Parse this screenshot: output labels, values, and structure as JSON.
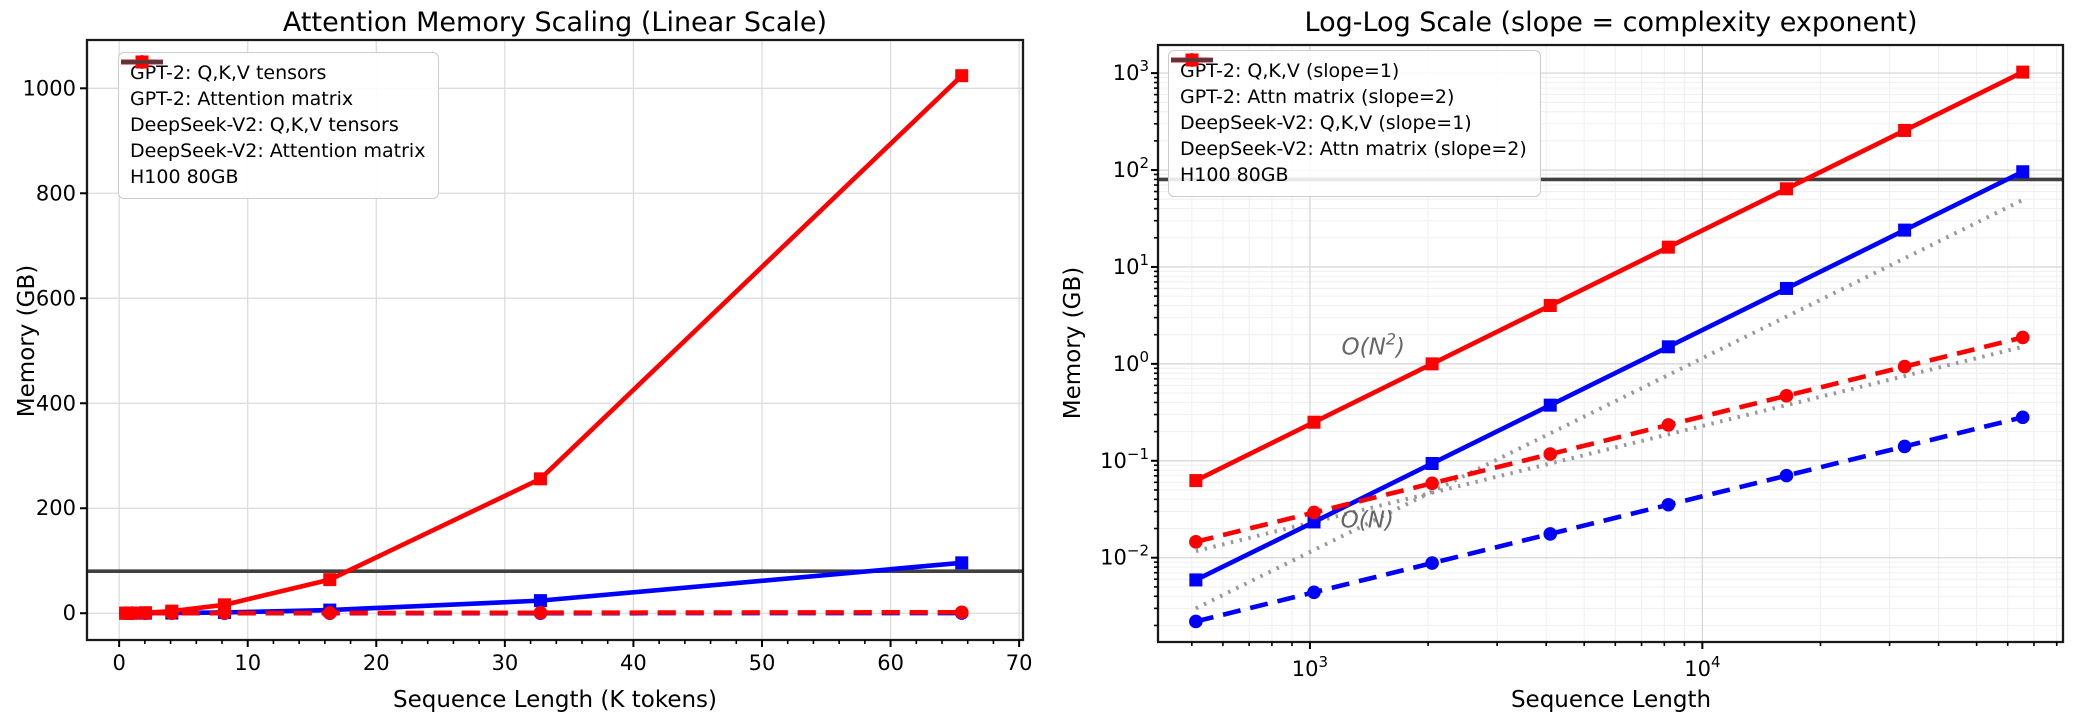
{
  "figure": {
    "background": "#ffffff",
    "grid_color": "#dcdcdc",
    "spine_color": "#1a1a1a"
  },
  "chart_data": [
    {
      "type": "line",
      "scale": "linear",
      "title": "Attention Memory Scaling (Linear Scale)",
      "xlabel": "Sequence Length (K tokens)",
      "ylabel": "Memory (GB)",
      "x_ticks": [
        0,
        10,
        20,
        30,
        40,
        50,
        60,
        70
      ],
      "y_ticks": [
        0,
        200,
        400,
        600,
        800,
        1000
      ],
      "xlim": [
        -2.5,
        70.3
      ],
      "ylim": [
        -51,
        1092
      ],
      "grid": true,
      "legend_location": "upper left",
      "x_kilo_tokens": [
        0.512,
        1.024,
        2.048,
        4.096,
        8.192,
        16.384,
        32.768,
        65.536
      ],
      "series": [
        {
          "name": "GPT-2: Q,K,V tensors",
          "color": "#0000ff",
          "linestyle": "dashed",
          "marker": "circle",
          "values_gb": [
            0.0022,
            0.0044,
            0.0088,
            0.0176,
            0.0352,
            0.0703,
            0.1406,
            0.2813
          ]
        },
        {
          "name": "GPT-2: Attention matrix",
          "color": "#0000ff",
          "linestyle": "solid",
          "marker": "square",
          "values_gb": [
            0.0059,
            0.0234,
            0.0938,
            0.375,
            1.5,
            6,
            24,
            96
          ]
        },
        {
          "name": "DeepSeek-V2: Q,K,V tensors",
          "color": "#ff0000",
          "linestyle": "dashed",
          "marker": "circle",
          "values_gb": [
            0.0146,
            0.0293,
            0.0586,
            0.1172,
            0.2344,
            0.4688,
            0.9375,
            1.875
          ]
        },
        {
          "name": "DeepSeek-V2: Attention matrix",
          "color": "#ff0000",
          "linestyle": "solid",
          "marker": "square",
          "values_gb": [
            0.0625,
            0.25,
            1,
            4,
            16,
            64,
            256,
            1024
          ]
        }
      ],
      "hline": {
        "label": "H100 80GB",
        "value_gb": 80,
        "color": "#404040"
      }
    },
    {
      "type": "line",
      "scale": "log-log",
      "title": "Log-Log Scale (slope = complexity exponent)",
      "xlabel": "Sequence Length",
      "ylabel": "Memory (GB)",
      "x_ticks": [
        1000,
        10000
      ],
      "y_ticks": [
        0.01,
        0.1,
        1,
        10,
        100,
        1000
      ],
      "xlim": [
        410,
        83000
      ],
      "ylim": [
        0.00135,
        1950
      ],
      "grid": true,
      "legend_location": "upper left",
      "x_tokens": [
        512,
        1024,
        2048,
        4096,
        8192,
        16384,
        32768,
        65536
      ],
      "series": [
        {
          "name": "GPT-2: Q,K,V (slope=1)",
          "color": "#0000ff",
          "linestyle": "dashed",
          "marker": "circle",
          "values_gb": [
            0.0022,
            0.0044,
            0.0088,
            0.0176,
            0.0352,
            0.0703,
            0.1406,
            0.2813
          ]
        },
        {
          "name": "GPT-2: Attn matrix (slope=2)",
          "color": "#0000ff",
          "linestyle": "solid",
          "marker": "square",
          "values_gb": [
            0.0059,
            0.0234,
            0.0938,
            0.375,
            1.5,
            6,
            24,
            96
          ]
        },
        {
          "name": "DeepSeek-V2: Q,K,V (slope=1)",
          "color": "#ff0000",
          "linestyle": "dashed",
          "marker": "circle",
          "values_gb": [
            0.0146,
            0.0293,
            0.0586,
            0.1172,
            0.2344,
            0.4688,
            0.9375,
            1.875
          ]
        },
        {
          "name": "DeepSeek-V2: Attn matrix (slope=2)",
          "color": "#ff0000",
          "linestyle": "solid",
          "marker": "square",
          "values_gb": [
            0.0625,
            0.25,
            1,
            4,
            16,
            64,
            256,
            1024
          ]
        }
      ],
      "reference_lines": [
        {
          "name": "O(N^2) reference",
          "slope": 2,
          "x": [
            512,
            65536
          ],
          "y": [
            0.003,
            49.15
          ],
          "color": "#999999",
          "linestyle": "dotted"
        },
        {
          "name": "O(N) reference",
          "slope": 1,
          "x": [
            512,
            65536
          ],
          "y": [
            0.0117,
            1.5
          ],
          "color": "#999999",
          "linestyle": "dotted"
        }
      ],
      "annotations": [
        {
          "text": "O(N²)",
          "x": 1450,
          "y": 1.25,
          "color": "#666666"
        },
        {
          "text": "O(N)",
          "x": 1400,
          "y": 0.0205,
          "color": "#666666"
        }
      ],
      "hline": {
        "label": "H100 80GB",
        "value_gb": 80,
        "color": "#404040"
      }
    }
  ]
}
